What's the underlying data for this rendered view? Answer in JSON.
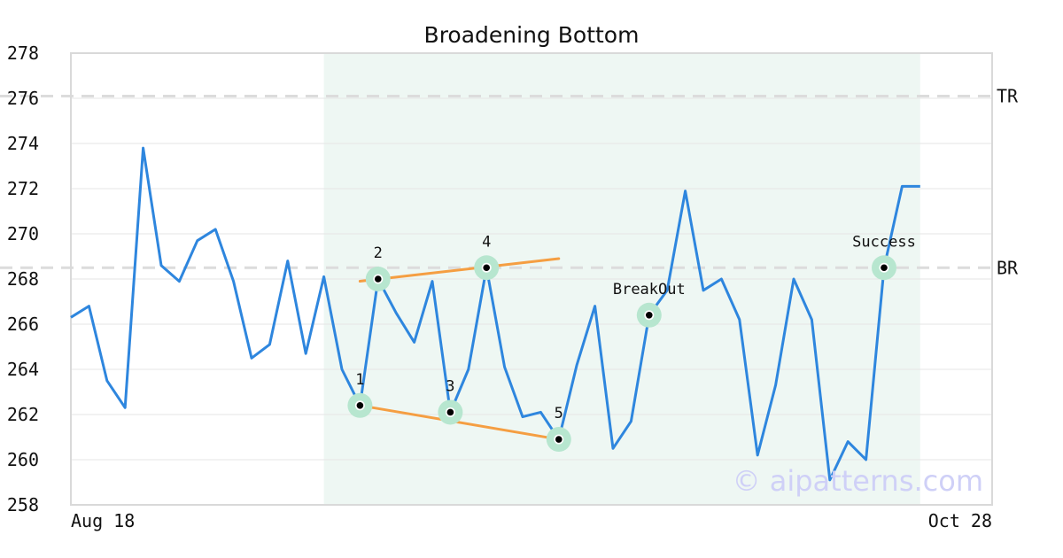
{
  "chart_data": {
    "type": "line",
    "title": "Broadening Bottom",
    "xlabel": "",
    "ylabel": "",
    "ylim": [
      258,
      278
    ],
    "y_ticks": [
      258,
      260,
      262,
      264,
      266,
      268,
      270,
      272,
      274,
      276,
      278
    ],
    "x_tick_labels": [
      "Aug 18",
      "Oct 28"
    ],
    "grid": true,
    "series": [
      {
        "color": "#2e86de",
        "values": [
          266.3,
          266.8,
          263.5,
          262.3,
          273.8,
          268.6,
          267.9,
          269.7,
          270.2,
          267.9,
          264.5,
          265.1,
          268.8,
          264.7,
          268.1,
          264.0,
          262.4,
          268.0,
          266.5,
          265.2,
          267.9,
          262.1,
          264.0,
          268.5,
          264.1,
          261.9,
          262.1,
          260.9,
          264.2,
          266.8,
          260.5,
          261.7,
          266.4,
          267.5,
          271.9,
          267.5,
          268.0,
          266.2,
          260.2,
          263.3,
          268.0,
          266.2,
          259.1,
          260.8,
          260.0,
          268.5,
          272.1,
          272.1
        ]
      }
    ],
    "highlight_range": {
      "start": 14,
      "end": 47,
      "color": "#eef7f3"
    },
    "levels": [
      {
        "label": "TR",
        "value": 276.1
      },
      {
        "label": "BR",
        "value": 268.5
      }
    ],
    "trendlines": [
      {
        "color": "#f59e42",
        "points": [
          [
            16,
            267.9
          ],
          [
            27,
            268.9
          ]
        ]
      },
      {
        "color": "#f59e42",
        "points": [
          [
            16,
            262.4
          ],
          [
            27,
            260.9
          ]
        ]
      }
    ],
    "markers": [
      {
        "label": "1",
        "index": 16,
        "value": 262.4,
        "label_position": "above"
      },
      {
        "label": "2",
        "index": 17,
        "value": 268.0,
        "label_position": "above"
      },
      {
        "label": "3",
        "index": 21,
        "value": 262.1,
        "label_position": "above"
      },
      {
        "label": "4",
        "index": 23,
        "value": 268.5,
        "label_position": "above"
      },
      {
        "label": "5",
        "index": 27,
        "value": 260.9,
        "label_position": "above"
      },
      {
        "label": "BreakOut",
        "index": 32,
        "value": 266.4,
        "label_position": "above"
      },
      {
        "label": "Success",
        "index": 45,
        "value": 268.5,
        "label_position": "above"
      }
    ],
    "watermark": "© aipatterns.com"
  },
  "colors": {
    "line": "#2e86de",
    "trendline": "#f59e42",
    "marker_halo": "#b7e6cf",
    "marker_dot": "#000000",
    "shade": "#eef7f3",
    "grid": "#e5e5e5",
    "level": "#dcdcdc",
    "axis": "#d9d9d9",
    "watermark": "#cfd0f7"
  }
}
